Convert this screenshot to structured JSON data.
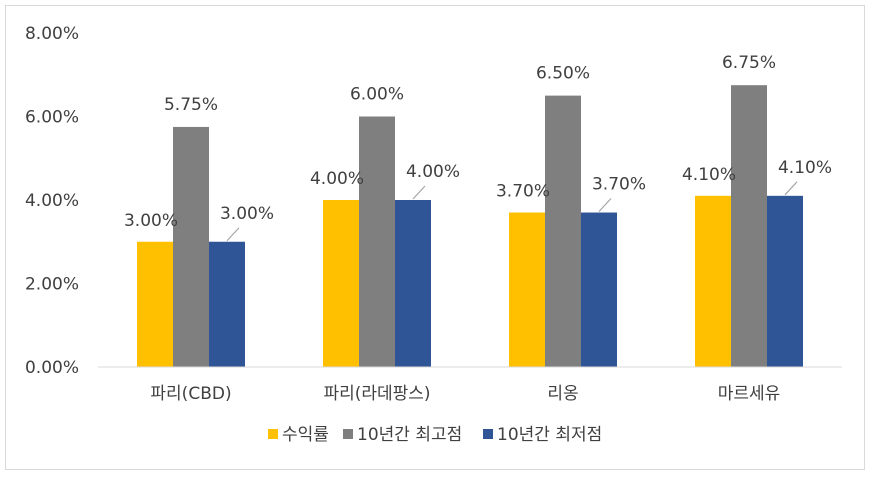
{
  "chart_data": {
    "type": "bar",
    "categories": [
      "파리(CBD)",
      "파리(라데팡스)",
      "리옹",
      "마르세유"
    ],
    "series": [
      {
        "name": "수익률",
        "values": [
          3.0,
          4.0,
          3.7,
          4.1
        ],
        "color": "#FFC000"
      },
      {
        "name": "10년간 최고점",
        "values": [
          5.75,
          6.0,
          6.5,
          6.75
        ],
        "color": "#7F7F7F"
      },
      {
        "name": "10년간 최저점",
        "values": [
          3.0,
          4.0,
          3.7,
          4.1
        ],
        "color": "#2F5597"
      }
    ],
    "ylim": [
      0,
      8
    ],
    "yticks": [
      "0.00%",
      "2.00%",
      "4.00%",
      "6.00%",
      "8.00%"
    ],
    "value_labels": [
      [
        "3.00%",
        "4.00%",
        "3.70%",
        "4.10%"
      ],
      [
        "5.75%",
        "6.00%",
        "6.50%",
        "6.75%"
      ],
      [
        "3.00%",
        "4.00%",
        "3.70%",
        "4.10%"
      ]
    ],
    "axis_color": "#d9d9d9",
    "legend_position": "bottom"
  }
}
